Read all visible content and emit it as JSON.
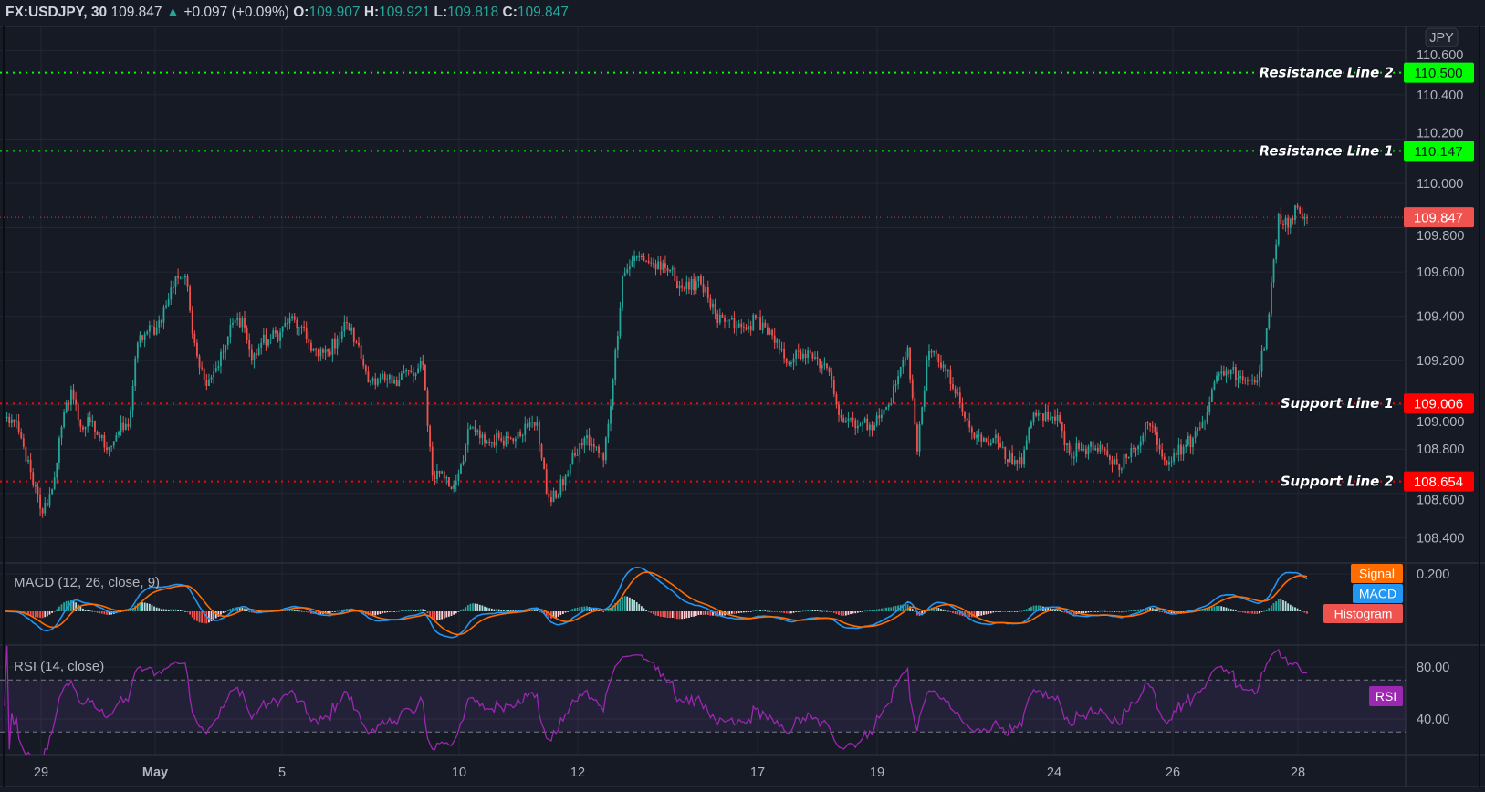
{
  "header": {
    "symbol": "FX:USDJPY, 30",
    "last": "109.847",
    "change_arrow": "▲",
    "change": "+0.097 (+0.09%)",
    "o_label": "O:",
    "o": "109.907",
    "h_label": "H:",
    "h": "109.921",
    "l_label": "L:",
    "l": "109.818",
    "c_label": "C:",
    "c": "109.847"
  },
  "currency_badge": "JPY",
  "colors": {
    "background": "#161a25",
    "up": "#26a69a",
    "down": "#ef5350",
    "resistance": "#00ff00",
    "support": "#ff0000",
    "macd": "#2196f3",
    "signal": "#ff6d00",
    "rsi": "#9c27b0"
  },
  "chart_data": {
    "type": "candlestick",
    "symbol": "FX:USDJPY",
    "interval": "30",
    "y_range": [
      108.3,
      110.7
    ],
    "grid": true,
    "price_ticks": [
      "110.600",
      "110.400",
      "110.200",
      "110.000",
      "109.800",
      "109.600",
      "109.400",
      "109.200",
      "109.000",
      "108.800",
      "108.600",
      "108.400"
    ],
    "x_ticks": [
      {
        "label": "29",
        "month": false
      },
      {
        "label": "May",
        "month": true
      },
      {
        "label": "5",
        "month": false
      },
      {
        "label": "10",
        "month": false
      },
      {
        "label": "12",
        "month": false
      },
      {
        "label": "17",
        "month": false
      },
      {
        "label": "19",
        "month": false
      },
      {
        "label": "24",
        "month": false
      },
      {
        "label": "26",
        "month": false
      },
      {
        "label": "28",
        "month": false
      }
    ],
    "closes": [
      108.94,
      108.92,
      108.81,
      108.64,
      108.51,
      108.62,
      108.9,
      109.07,
      108.9,
      108.92,
      108.85,
      108.81,
      108.88,
      108.9,
      109.28,
      109.33,
      109.35,
      109.45,
      109.58,
      109.58,
      109.28,
      109.11,
      109.15,
      109.24,
      109.37,
      109.39,
      109.2,
      109.28,
      109.3,
      109.33,
      109.39,
      109.35,
      109.28,
      109.22,
      109.24,
      109.3,
      109.37,
      109.28,
      109.15,
      109.09,
      109.11,
      109.11,
      109.15,
      109.13,
      109.18,
      108.68,
      108.7,
      108.62,
      108.73,
      108.9,
      108.85,
      108.83,
      108.85,
      108.85,
      108.88,
      108.9,
      108.92,
      108.6,
      108.58,
      108.68,
      108.77,
      108.85,
      108.81,
      108.75,
      109.11,
      109.58,
      109.65,
      109.67,
      109.64,
      109.61,
      109.61,
      109.54,
      109.52,
      109.58,
      109.48,
      109.37,
      109.38,
      109.35,
      109.34,
      109.39,
      109.35,
      109.28,
      109.21,
      109.21,
      109.23,
      109.21,
      109.18,
      109.11,
      108.94,
      108.94,
      108.91,
      108.91,
      108.94,
      109.0,
      109.13,
      109.26,
      108.79,
      109.2,
      109.23,
      109.15,
      109.05,
      108.94,
      108.85,
      108.85,
      108.85,
      108.81,
      108.73,
      108.73,
      108.92,
      108.96,
      108.94,
      108.92,
      108.78,
      108.8,
      108.81,
      108.79,
      108.77,
      108.73,
      108.76,
      108.8,
      108.92,
      108.88,
      108.75,
      108.78,
      108.81,
      108.85,
      108.92,
      109.07,
      109.15,
      109.16,
      109.13,
      109.11,
      109.15,
      109.41,
      109.86,
      109.8,
      109.89,
      109.847
    ],
    "horizontal_lines": [
      {
        "label": "Resistance Line 2",
        "price": 110.5,
        "tag": "110.500",
        "kind": "resistance"
      },
      {
        "label": "Resistance Line 1",
        "price": 110.147,
        "tag": "110.147",
        "kind": "resistance"
      },
      {
        "label": "Support Line 1",
        "price": 109.006,
        "tag": "109.006",
        "kind": "support"
      },
      {
        "label": "Support Line 2",
        "price": 108.654,
        "tag": "108.654",
        "kind": "support"
      }
    ],
    "last_price": {
      "value": 109.847,
      "tag": "109.847"
    },
    "indicators": {
      "macd": {
        "title": "MACD (12, 26, close, 9)",
        "legend": [
          "Signal",
          "MACD",
          "Histogram"
        ],
        "axis_tick": "0.200",
        "axis_tick_value": 0.2
      },
      "rsi": {
        "title": "RSI (14, close)",
        "legend": "RSI",
        "axis_ticks": [
          "80.00",
          "40.00"
        ],
        "axis_tick_values": [
          80,
          40
        ],
        "bands": [
          70,
          30
        ]
      }
    }
  }
}
